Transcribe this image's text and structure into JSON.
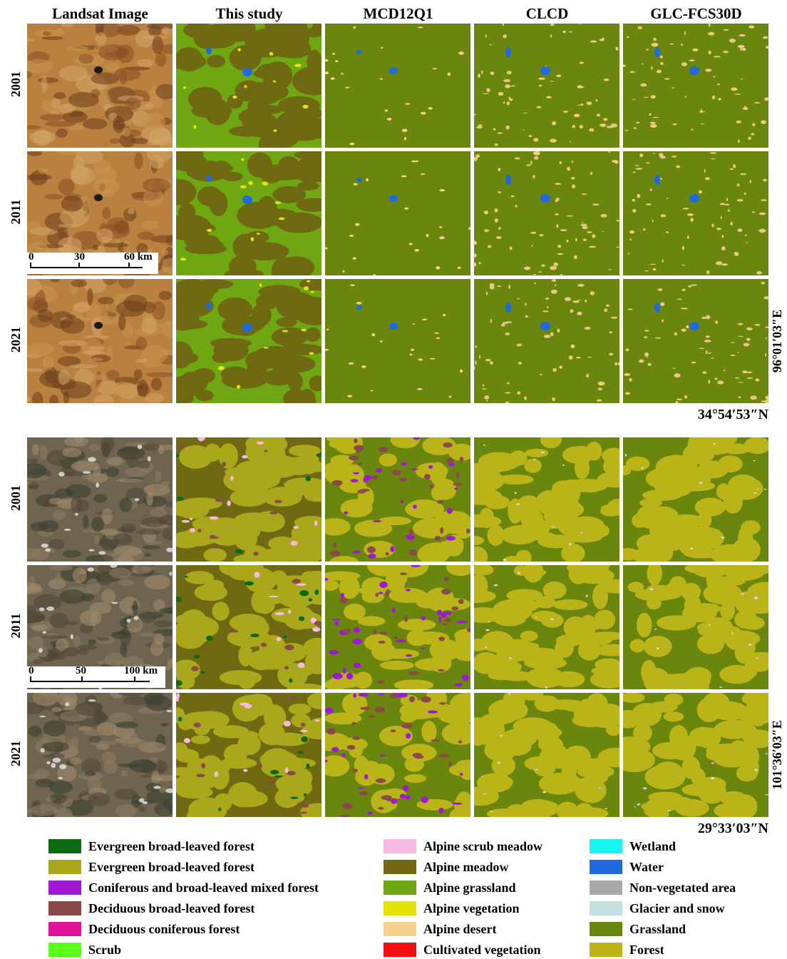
{
  "columns": [
    "Landsat Image",
    "This study",
    "MCD12Q1",
    "CLCD",
    "GLC-FCS30D"
  ],
  "years": [
    "2001",
    "2011",
    "2021"
  ],
  "region1": {
    "longitude": "96°01′03″E",
    "latitude": "34°54′53″N",
    "scalebar": {
      "ticks": [
        "0",
        "30",
        "60 km"
      ]
    }
  },
  "region2": {
    "longitude": "101°36′03″E",
    "latitude": "29°33′03″N",
    "scalebar": {
      "ticks": [
        "0",
        "50",
        "100 km"
      ]
    }
  },
  "legend": [
    {
      "label": "Evergreen broad-leaved forest",
      "color": "#0b6a12"
    },
    {
      "label": "Evergreen broad-leaved forest",
      "color": "#a8a81a"
    },
    {
      "label": "Coniferous and broad-leaved mixed forest",
      "color": "#a117d6"
    },
    {
      "label": "Deciduous broad-leaved forest",
      "color": "#8a4a4a"
    },
    {
      "label": "Deciduous coniferous forest",
      "color": "#e0139a"
    },
    {
      "label": "Scrub",
      "color": "#5aff1e"
    },
    {
      "label": "Alpine scrub meadow",
      "color": "#f7b9df"
    },
    {
      "label": "Alpine meadow",
      "color": "#6f6a12"
    },
    {
      "label": "Alpine grassland",
      "color": "#6ea712"
    },
    {
      "label": "Alpine vegetation",
      "color": "#e3e30a"
    },
    {
      "label": "Alpine desert",
      "color": "#f8cf8f"
    },
    {
      "label": "Cultivated vegetation",
      "color": "#f20f0f"
    },
    {
      "label": "Wetland",
      "color": "#19f3f1"
    },
    {
      "label": "Water",
      "color": "#1f6ae0"
    },
    {
      "label": "Non-vegetated area",
      "color": "#a9a9a9"
    },
    {
      "label": "Glacier and snow",
      "color": "#c4dfdf"
    },
    {
      "label": "Grassland",
      "color": "#6b860c"
    },
    {
      "label": "Forest",
      "color": "#bbb418"
    }
  ]
}
